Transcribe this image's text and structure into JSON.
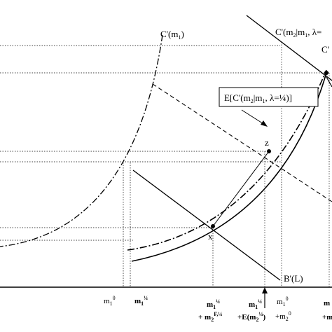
{
  "curve_labels": {
    "c_m1": "C'(m",
    "c_m1_sub": "1",
    "c_m1_close": ")",
    "c_m2m1": "C'(m",
    "c_m2m1_sub2": "2",
    "c_m2m1_bar": "|m",
    "c_m2m1_sub1": "1",
    "c_m2m1_lambda": ", λ=",
    "c_prime_corner": "C'",
    "expectation_box": "E[C'(m",
    "expectation_sub2": "2",
    "expectation_bar": "|m",
    "expectation_sub1": "1",
    "expectation_lambda": ", λ=¼)]",
    "budget": "B'(L)"
  },
  "point_labels": {
    "z": "z",
    "x": "x"
  },
  "axis_labels": {
    "m1_zero": "m",
    "m1_zero_sub": "1",
    "m1_zero_sup": "0",
    "m1_quarter": "m",
    "m1_quarter_sub": "1",
    "m1_quarter_sup": "¼",
    "m1q_line1": "m",
    "m1q_line1_sub": "1",
    "m1q_line1_sup": "¼",
    "m1q_line2": "+ m",
    "m1q_line2_sub": "2",
    "m1q_line2_sup": "F,¼",
    "em2_line1": "m",
    "em2_line1_sub": "1",
    "em2_line1_sup": "¼",
    "em2_line2": "+E(m",
    "em2_line2_sub": "2",
    "em2_line2_sup": "¼",
    "em2_line2_close": ")",
    "m1_m20_line1": "m",
    "m1_m20_line1_sub": "1",
    "m1_m20_line1_sup": "0",
    "m1_m20_line2": "+m",
    "m1_m20_line2_sub": "2",
    "m1_m20_line2_sup": "0",
    "right_cut_line1": "m",
    "right_cut_line2": "+m"
  }
}
